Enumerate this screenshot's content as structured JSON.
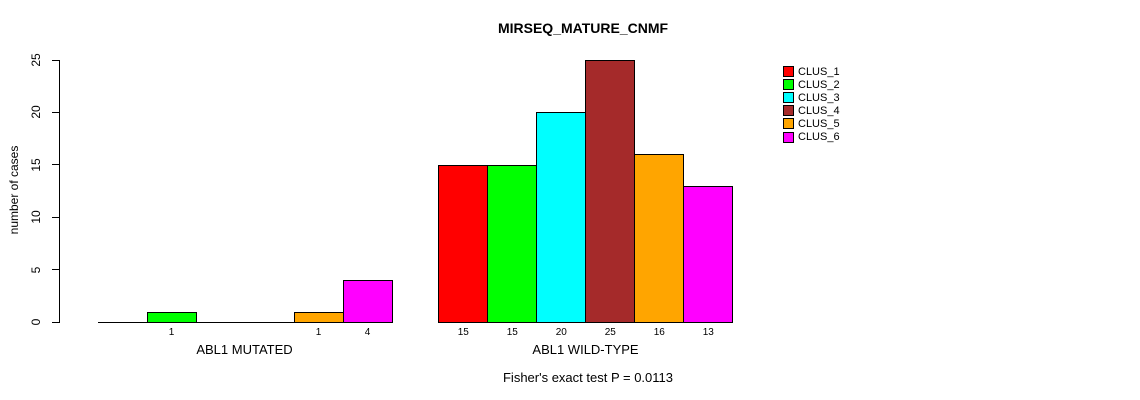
{
  "chart_data": {
    "type": "bar",
    "title": "MIRSEQ_MATURE_CNMF",
    "ylabel": "number of cases",
    "categories": [
      "ABL1 MUTATED",
      "ABL1 WILD-TYPE"
    ],
    "series": [
      {
        "name": "CLUS_1",
        "color": "#FF0000",
        "values": [
          0,
          15
        ]
      },
      {
        "name": "CLUS_2",
        "color": "#00FF00",
        "values": [
          1,
          15
        ]
      },
      {
        "name": "CLUS_3",
        "color": "#00FFFF",
        "values": [
          0,
          20
        ]
      },
      {
        "name": "CLUS_4",
        "color": "#A52A2A",
        "values": [
          0,
          25
        ]
      },
      {
        "name": "CLUS_5",
        "color": "#FFA500",
        "values": [
          1,
          16
        ]
      },
      {
        "name": "CLUS_6",
        "color": "#FF00FF",
        "values": [
          4,
          13
        ]
      }
    ],
    "bar_value_labels": {
      "ABL1 MUTATED": [
        "",
        "1",
        "",
        "",
        "1",
        "4"
      ],
      "ABL1 WILD-TYPE": [
        "15",
        "15",
        "20",
        "25",
        "16",
        "13"
      ]
    },
    "yticks": [
      0,
      5,
      10,
      15,
      20,
      25
    ],
    "ylim": [
      0,
      25
    ],
    "grid": false,
    "legend_position": "top-right",
    "annotation": "Fisher's exact test P = 0.0113",
    "bar_border_color": "#000000",
    "background_color": "#FFFFFF"
  }
}
